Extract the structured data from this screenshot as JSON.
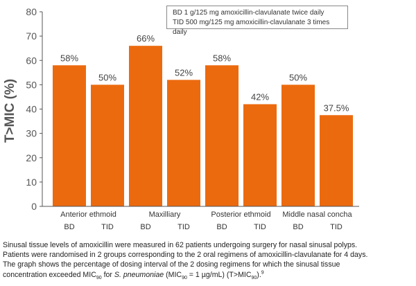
{
  "legend": {
    "line1": "BD 1 g/125 mg amoxicillin-clavulanate twice daily",
    "line2": "TID 500 mg/125 mg amoxicillin-clavulanate 3 times daily"
  },
  "caption": {
    "line1": "Sinusal tissue levels of amoxicillin were measured in 62 patients undergoing surgery for nasal sinusal polyps.",
    "line2": "Patients were randomised in 2 groups corresponding to the 2 oral regimens of amoxicillin-clavulanate for 4 days.",
    "line3": "The graph shows the percentage of dosing interval of the 2 dosing regimens for which the sinusal tissue",
    "l4_a": "concentration exceeded MIC",
    "l4_sub1": "90",
    "l4_b": " for ",
    "l4_italic": "S. pneumoniae",
    "l4_c": " (MIC",
    "l4_sub2": "90",
    "l4_d": " = 1 µg/mL) (T>MIC",
    "l4_sub3": "90",
    "l4_e": ").",
    "l4_sup": "9"
  },
  "chart_data": {
    "type": "bar",
    "ylabel": "T>MIC (%)",
    "ylim": [
      0,
      80
    ],
    "yticks": [
      0,
      10,
      20,
      30,
      40,
      50,
      60,
      70,
      80
    ],
    "grid": false,
    "bar_color": "#EC6A0E",
    "groups": [
      "Anterior ethmoid",
      "Maxilliary",
      "Posterior ethmoid",
      "Middle nasal concha"
    ],
    "bars": [
      {
        "group": "Anterior ethmoid",
        "regimen": "BD",
        "value": 58,
        "label": "58%"
      },
      {
        "group": "Anterior ethmoid",
        "regimen": "TID",
        "value": 50,
        "label": "50%"
      },
      {
        "group": "Maxilliary",
        "regimen": "BD",
        "value": 66,
        "label": "66%"
      },
      {
        "group": "Maxilliary",
        "regimen": "TID",
        "value": 52,
        "label": "52%"
      },
      {
        "group": "Posterior ethmoid",
        "regimen": "BD",
        "value": 58,
        "label": "58%"
      },
      {
        "group": "Posterior ethmoid",
        "regimen": "TID",
        "value": 42,
        "label": "42%"
      },
      {
        "group": "Middle nasal concha",
        "regimen": "BD",
        "value": 50,
        "label": "50%"
      },
      {
        "group": "Middle nasal concha",
        "regimen": "TID",
        "value": 37.5,
        "label": "37.5%"
      }
    ]
  }
}
